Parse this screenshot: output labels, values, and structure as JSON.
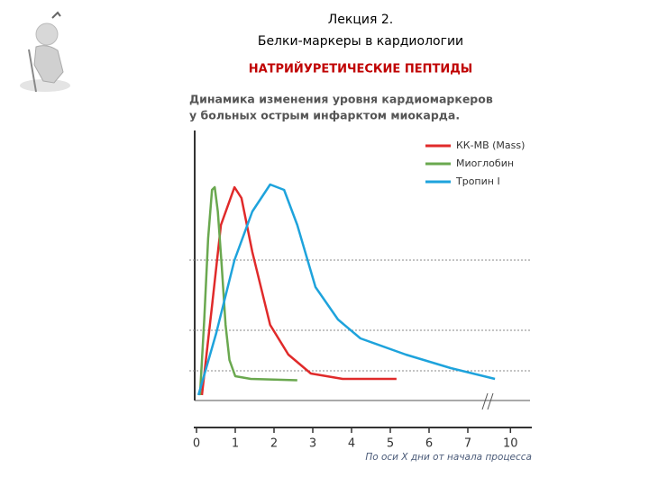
{
  "header": {
    "line1": "Лекция 2.",
    "line2": "Белки-маркеры в кардиологии",
    "subtitle": "НАТРИЙУРЕТИЧЕСКИЕ ПЕПТИДЫ"
  },
  "chart_data": {
    "type": "line",
    "title": [
      "Динамика изменения уровня кардиомаркеров",
      "у больных острым инфарктом миокарда."
    ],
    "xlabel": "По оси Х дни от начала процесса",
    "xlim": [
      0,
      10
    ],
    "x_break": [
      7.5,
      9.4
    ],
    "xticks": [
      0,
      1,
      2,
      3,
      4,
      5,
      6,
      7,
      10
    ],
    "ylim": [
      0,
      100
    ],
    "yticks": [
      11,
      26,
      52
    ],
    "grid": true,
    "legend": "upper right",
    "series": [
      {
        "name": "КК-МВ (Mass)",
        "color": "#e02a2a",
        "x": [
          0.14,
          0.4,
          0.63,
          0.98,
          1.16,
          1.44,
          1.9,
          2.37,
          2.95,
          3.77,
          5.16
        ],
        "values": [
          2,
          35,
          65,
          79,
          75,
          55,
          28,
          17,
          10,
          8,
          8
        ]
      },
      {
        "name": "Миоглобин",
        "color": "#6aa84f",
        "x": [
          0.09,
          0.2,
          0.3,
          0.4,
          0.47,
          0.55,
          0.65,
          0.75,
          0.85,
          1.0,
          1.4,
          2.6
        ],
        "values": [
          2,
          30,
          60,
          78,
          79,
          70,
          50,
          28,
          15,
          9,
          8,
          7.5
        ]
      },
      {
        "name": "Тропин I",
        "color": "#1ea3dc",
        "x": [
          0.05,
          0.51,
          0.98,
          1.44,
          1.9,
          2.26,
          2.6,
          3.07,
          3.65,
          4.23,
          5.4,
          6.56,
          9.6
        ],
        "values": [
          2,
          25,
          52,
          70,
          80,
          78,
          65,
          42,
          30,
          23,
          17,
          12,
          8
        ]
      }
    ]
  }
}
